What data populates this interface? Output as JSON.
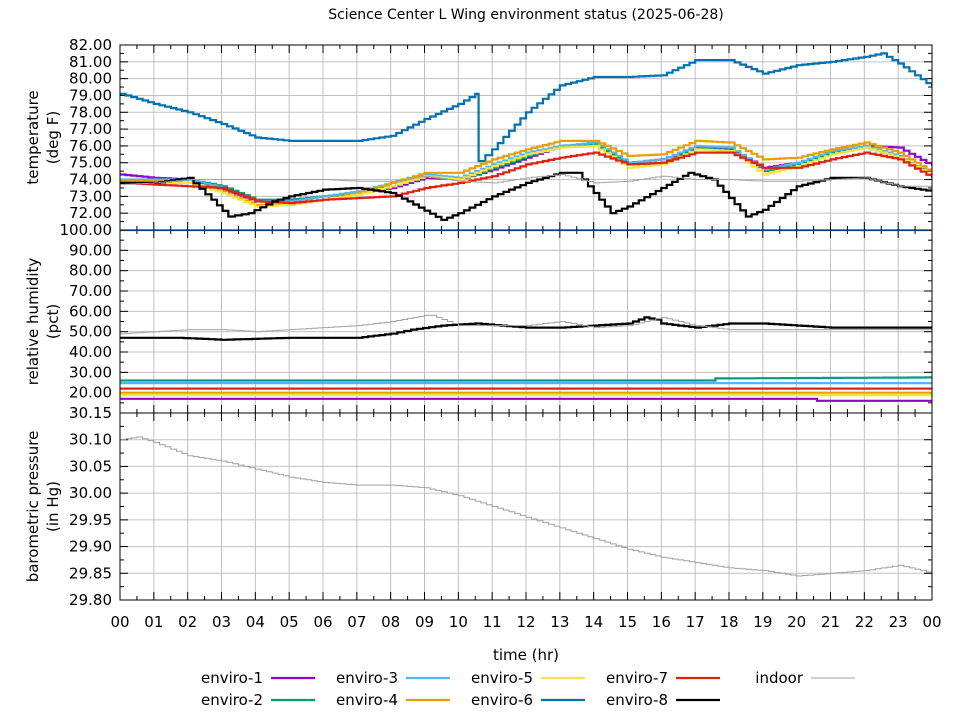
{
  "chart_data": {
    "type": "line",
    "title": "Science Center L Wing environment status (2025-06-28)",
    "xlabel": "time (hr)",
    "x_ticks": [
      "00",
      "01",
      "02",
      "03",
      "04",
      "05",
      "06",
      "07",
      "08",
      "09",
      "10",
      "11",
      "12",
      "13",
      "14",
      "15",
      "16",
      "17",
      "18",
      "19",
      "20",
      "21",
      "22",
      "23",
      "00"
    ],
    "xlim": [
      0,
      24
    ],
    "grid": true,
    "legend_position": "bottom",
    "legend": [
      {
        "name": "enviro-1",
        "color": "#9400d3"
      },
      {
        "name": "enviro-2",
        "color": "#009e73"
      },
      {
        "name": "enviro-3",
        "color": "#56b4e9"
      },
      {
        "name": "enviro-4",
        "color": "#e69f00"
      },
      {
        "name": "enviro-5",
        "color": "#f0e442"
      },
      {
        "name": "enviro-6",
        "color": "#0072b2"
      },
      {
        "name": "enviro-7",
        "color": "#e51e10"
      },
      {
        "name": "enviro-8",
        "color": "#000000"
      },
      {
        "name": "indoor",
        "color": "#a0a0a0"
      }
    ],
    "panels": [
      {
        "id": "temperature",
        "ylabel": [
          "temperature",
          "(deg F)"
        ],
        "ylim": [
          71,
          82
        ],
        "y_ticks": [
          "72.00",
          "73.00",
          "74.00",
          "75.00",
          "76.00",
          "77.00",
          "78.00",
          "79.00",
          "80.00",
          "81.00",
          "82.00"
        ],
        "y_tick_values": [
          72,
          73,
          74,
          75,
          76,
          77,
          78,
          79,
          80,
          81,
          82
        ],
        "series": [
          {
            "name": "enviro-6",
            "x": [
              0,
              1,
              2,
              3,
              4,
              5,
              6,
              7,
              8,
              9,
              10,
              10.5,
              10.6,
              11,
              12,
              13,
              14,
              15,
              16,
              17,
              18,
              19,
              20,
              21,
              22,
              22.5,
              23,
              24
            ],
            "y": [
              79.1,
              78.5,
              78.0,
              77.3,
              76.5,
              76.3,
              76.3,
              76.3,
              76.6,
              77.6,
              78.5,
              79.1,
              75.1,
              75.8,
              78.0,
              79.6,
              80.1,
              80.1,
              80.2,
              81.1,
              81.1,
              80.3,
              80.8,
              81.0,
              81.3,
              81.5,
              80.9,
              79.5
            ]
          },
          {
            "name": "enviro-1",
            "x": [
              0,
              1,
              2,
              3,
              4,
              5,
              6,
              7,
              8,
              9,
              10,
              11,
              12,
              13,
              14,
              15,
              16,
              17,
              18,
              19,
              20,
              21,
              22,
              23,
              24
            ],
            "y": [
              74.3,
              74.1,
              74.0,
              73.4,
              72.7,
              72.8,
              73.0,
              73.2,
              73.5,
              74.1,
              74.0,
              74.6,
              75.3,
              76.0,
              76.0,
              75.0,
              75.2,
              75.9,
              75.8,
              74.7,
              75.0,
              75.6,
              76.0,
              75.9,
              74.8
            ]
          },
          {
            "name": "enviro-2",
            "x": [
              0,
              1,
              2,
              3,
              4,
              5,
              6,
              7,
              8,
              9,
              10,
              11,
              12,
              13,
              14,
              15,
              16,
              17,
              18,
              19,
              20,
              21,
              22,
              23,
              24
            ],
            "y": [
              73.9,
              73.9,
              74.0,
              73.6,
              72.8,
              72.8,
              73.0,
              73.2,
              73.6,
              74.2,
              74.0,
              74.7,
              75.4,
              76.0,
              76.1,
              74.9,
              75.0,
              75.9,
              75.9,
              74.5,
              74.9,
              75.6,
              75.9,
              75.3,
              74.3
            ]
          },
          {
            "name": "enviro-3",
            "x": [
              0,
              1,
              2,
              3,
              4,
              5,
              6,
              7,
              8,
              9,
              10,
              11,
              12,
              13,
              14,
              15,
              16,
              17,
              18,
              19,
              20,
              21,
              22,
              23,
              24
            ],
            "y": [
              74.0,
              74.0,
              74.0,
              73.5,
              72.7,
              72.7,
              73.0,
              73.3,
              73.8,
              74.3,
              74.1,
              74.9,
              75.6,
              76.0,
              76.2,
              75.0,
              75.2,
              76.0,
              75.9,
              74.6,
              75.0,
              75.7,
              76.0,
              75.4,
              74.2
            ]
          },
          {
            "name": "enviro-4",
            "x": [
              0,
              1,
              2,
              3,
              4,
              5,
              6,
              7,
              8,
              9,
              10,
              11,
              12,
              13,
              14,
              15,
              16,
              17,
              18,
              19,
              20,
              21,
              22,
              23,
              24
            ],
            "y": [
              73.9,
              73.9,
              73.8,
              73.3,
              72.5,
              72.5,
              72.8,
              73.2,
              73.8,
              74.4,
              74.4,
              75.2,
              75.8,
              76.3,
              76.3,
              75.4,
              75.5,
              76.3,
              76.2,
              75.2,
              75.3,
              75.8,
              76.2,
              75.6,
              74.4
            ]
          },
          {
            "name": "enviro-5",
            "x": [
              0,
              1,
              2,
              3,
              4,
              5,
              6,
              7,
              8,
              9,
              10,
              11,
              12,
              13,
              14,
              15,
              16,
              17,
              18,
              19,
              20,
              21,
              22,
              23,
              24
            ],
            "y": [
              73.8,
              73.8,
              73.8,
              73.2,
              72.4,
              72.5,
              72.8,
              73.1,
              73.6,
              74.2,
              74.0,
              74.8,
              75.5,
              75.9,
              76.0,
              74.7,
              74.9,
              75.8,
              75.7,
              74.3,
              74.8,
              75.5,
              75.9,
              75.3,
              74.2
            ]
          },
          {
            "name": "enviro-7",
            "x": [
              0,
              1,
              2,
              3,
              4,
              5,
              6,
              7,
              8,
              9,
              10,
              11,
              12,
              13,
              14,
              15,
              16,
              17,
              18,
              19,
              20,
              21,
              22,
              23,
              24
            ],
            "y": [
              73.8,
              73.7,
              73.6,
              73.5,
              72.7,
              72.6,
              72.8,
              72.9,
              73.0,
              73.5,
              73.8,
              74.2,
              74.9,
              75.3,
              75.6,
              74.9,
              75.0,
              75.6,
              75.6,
              74.7,
              74.7,
              75.2,
              75.6,
              75.2,
              74.1
            ]
          },
          {
            "name": "enviro-8",
            "x": [
              0,
              1,
              2,
              2.7,
              3.2,
              3.8,
              4.5,
              5,
              6,
              7,
              8,
              8.5,
              9.5,
              10,
              11,
              12,
              13,
              13.5,
              14.5,
              15,
              16,
              16.8,
              17.5,
              18.5,
              19,
              20,
              21,
              22,
              23,
              24
            ],
            "y": [
              73.8,
              73.8,
              74.1,
              72.8,
              71.8,
              72.0,
              72.7,
              73.0,
              73.4,
              73.5,
              73.2,
              72.7,
              71.6,
              72.0,
              73.0,
              73.8,
              74.4,
              74.4,
              72.0,
              72.4,
              73.5,
              74.4,
              74.0,
              71.8,
              72.2,
              73.6,
              74.1,
              74.1,
              73.6,
              73.3
            ]
          },
          {
            "name": "indoor",
            "x": [
              0,
              1,
              2,
              3,
              4,
              5,
              6,
              7,
              8,
              9,
              10,
              11,
              12,
              13,
              14,
              15,
              16,
              17,
              18,
              19,
              20,
              21,
              22,
              23,
              24
            ],
            "y": [
              73.7,
              73.8,
              74.0,
              74.0,
              74.0,
              74.0,
              74.0,
              73.9,
              73.9,
              74.2,
              73.9,
              73.8,
              74.1,
              74.3,
              73.8,
              73.9,
              74.2,
              74.0,
              74.0,
              73.9,
              73.9,
              74.0,
              74.1,
              73.6,
              73.6
            ]
          }
        ]
      },
      {
        "id": "humidity",
        "ylabel": [
          "relative humidity",
          "(pct)"
        ],
        "ylim": [
          10,
          100
        ],
        "y_ticks": [
          "20.00",
          "30.00",
          "40.00",
          "50.00",
          "60.00",
          "70.00",
          "80.00",
          "90.00",
          "100.00"
        ],
        "y_tick_values": [
          20,
          30,
          40,
          50,
          60,
          70,
          80,
          90,
          100
        ],
        "series": [
          {
            "name": "enviro-6",
            "x": [
              0,
              24
            ],
            "y": [
              100,
              100
            ]
          },
          {
            "name": "enviro-2",
            "x": [
              0,
              17.5,
              17.6,
              24
            ],
            "y": [
              26,
              26,
              27,
              27.5
            ]
          },
          {
            "name": "enviro-3",
            "x": [
              0,
              24
            ],
            "y": [
              24.7,
              24.7
            ]
          },
          {
            "name": "enviro-7",
            "x": [
              0,
              24
            ],
            "y": [
              22,
              22
            ]
          },
          {
            "name": "enviro-4",
            "x": [
              0,
              24
            ],
            "y": [
              20,
              20
            ]
          },
          {
            "name": "enviro-5",
            "x": [
              0,
              24
            ],
            "y": [
              18.8,
              18.8
            ]
          },
          {
            "name": "enviro-1",
            "x": [
              0,
              20.5,
              20.6,
              24
            ],
            "y": [
              17,
              17,
              16,
              16
            ]
          },
          {
            "name": "enviro-8",
            "x": [
              0,
              1.7,
              3,
              5,
              7,
              8,
              8.6,
              9.5,
              10.5,
              12,
              13,
              14,
              15,
              15.5,
              15.8,
              16,
              16.5,
              17,
              18,
              19,
              20,
              21,
              22,
              23,
              24
            ],
            "y": [
              47,
              47,
              46,
              47,
              47,
              49,
              51,
              53,
              54,
              52,
              52,
              53,
              54,
              57,
              56,
              54,
              53,
              52,
              54,
              54,
              53,
              52,
              52,
              52,
              52
            ]
          },
          {
            "name": "indoor",
            "x": [
              0,
              1,
              2,
              3,
              4,
              5,
              6,
              7,
              8,
              9,
              9.2,
              10,
              11,
              12,
              13,
              14,
              15,
              16,
              17,
              18,
              19,
              20,
              21,
              22,
              23,
              24
            ],
            "y": [
              49,
              50,
              51,
              51,
              50,
              51,
              52,
              53,
              55,
              58,
              58,
              53,
              53,
              53,
              55,
              52,
              53,
              57,
              53,
              51,
              51,
              51,
              51,
              51,
              51,
              51
            ]
          }
        ]
      },
      {
        "id": "pressure",
        "ylabel": [
          "barometric pressure",
          "(in Hg)"
        ],
        "ylim": [
          29.8,
          30.15
        ],
        "y_ticks": [
          "29.80",
          "29.85",
          "29.90",
          "29.95",
          "30.00",
          "30.05",
          "30.10",
          "30.15"
        ],
        "y_tick_values": [
          29.8,
          29.85,
          29.9,
          29.95,
          30.0,
          30.05,
          30.1,
          30.15
        ],
        "series": [
          {
            "name": "indoor",
            "x": [
              0,
              0.5,
              1,
              2,
              3,
              4,
              5,
              6,
              7,
              8,
              9,
              10,
              11,
              12,
              13,
              14,
              15,
              16,
              17,
              18,
              19,
              20,
              21,
              22,
              22.5,
              23,
              24
            ],
            "y": [
              30.1,
              30.105,
              30.095,
              30.07,
              30.06,
              30.045,
              30.03,
              30.02,
              30.015,
              30.015,
              30.01,
              29.995,
              29.975,
              29.955,
              29.935,
              29.915,
              29.895,
              29.88,
              29.87,
              29.86,
              29.855,
              29.845,
              29.85,
              29.855,
              29.86,
              29.865,
              29.85
            ]
          }
        ]
      }
    ]
  }
}
